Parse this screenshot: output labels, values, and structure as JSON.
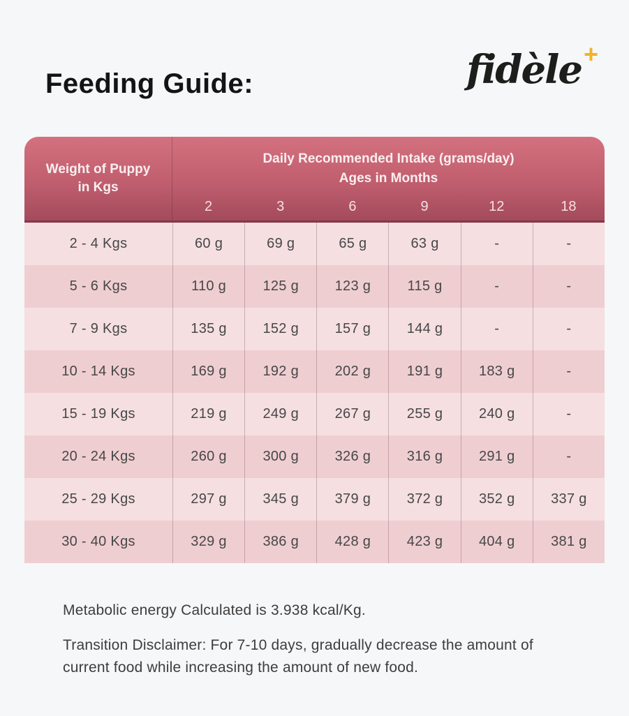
{
  "page": {
    "title": "Feeding Guide:",
    "background_color": "#f6f7f9"
  },
  "brand": {
    "logo_text": "fidèle",
    "logo_plus": "+",
    "logo_text_color": "#1d1d1b",
    "logo_plus_color": "#f0b42a"
  },
  "table": {
    "corner_header": "Weight of Puppy in Kgs",
    "span_header_line1": "Daily Recommended Intake (grams/day)",
    "span_header_line2": "Ages in Months",
    "age_columns": [
      "2",
      "3",
      "6",
      "9",
      "12",
      "18"
    ],
    "rows": [
      {
        "weight": "2 - 4 Kgs",
        "values": [
          "60 g",
          "69 g",
          "65 g",
          "63 g",
          "-",
          "-"
        ]
      },
      {
        "weight": "5 - 6 Kgs",
        "values": [
          "110 g",
          "125 g",
          "123 g",
          "115 g",
          "-",
          "-"
        ]
      },
      {
        "weight": "7 - 9 Kgs",
        "values": [
          "135 g",
          "152 g",
          "157 g",
          "144 g",
          "-",
          "-"
        ]
      },
      {
        "weight": "10 - 14 Kgs",
        "values": [
          "169 g",
          "192 g",
          "202 g",
          "191 g",
          "183 g",
          "-"
        ]
      },
      {
        "weight": "15 - 19 Kgs",
        "values": [
          "219 g",
          "249 g",
          "267 g",
          "255 g",
          "240 g",
          "-"
        ]
      },
      {
        "weight": "20 - 24 Kgs",
        "values": [
          "260 g",
          "300 g",
          "326 g",
          "316 g",
          "291 g",
          "-"
        ]
      },
      {
        "weight": "25 - 29 Kgs",
        "values": [
          "297 g",
          "345 g",
          "379 g",
          "372 g",
          "352 g",
          "337 g"
        ]
      },
      {
        "weight": "30 - 40 Kgs",
        "values": [
          "329 g",
          "386 g",
          "428 g",
          "423 g",
          "404 g",
          "381 g"
        ]
      }
    ],
    "colors": {
      "header_gradient_top": "#d4717f",
      "header_gradient_bottom": "#a34b5b",
      "header_underline": "#82374a",
      "header_text": "#fbeef0",
      "row_light": "#f5dfe1",
      "row_dark": "#efced2",
      "body_text": "#474747"
    }
  },
  "notes": {
    "metabolic_energy": "Metabolic energy Calculated is 3.938 kcal/Kg.",
    "transition_disclaimer": "Transition Disclaimer: For 7-10 days, gradually decrease the amount of current food while increasing the amount of new food."
  }
}
